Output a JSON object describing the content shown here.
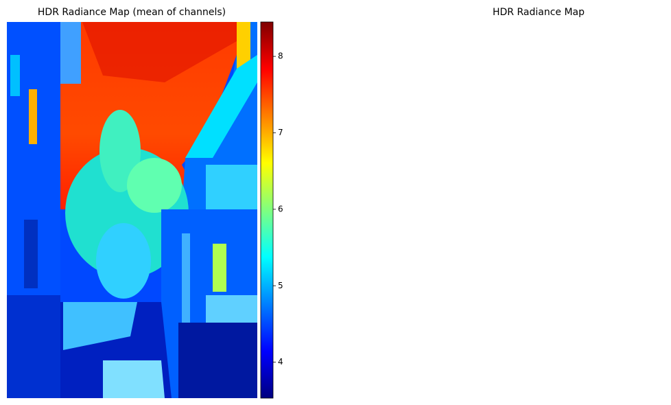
{
  "chart_data": [
    {
      "type": "image",
      "title": "HDR Radiance Map (mean of channels)",
      "colormap": "jet",
      "colorbar_lim": [
        3.53,
        8.45
      ],
      "colorbar_ticks": [
        4,
        5,
        6,
        7,
        8
      ]
    },
    {
      "type": "empty",
      "title": "HDR Radiance Map"
    }
  ]
}
